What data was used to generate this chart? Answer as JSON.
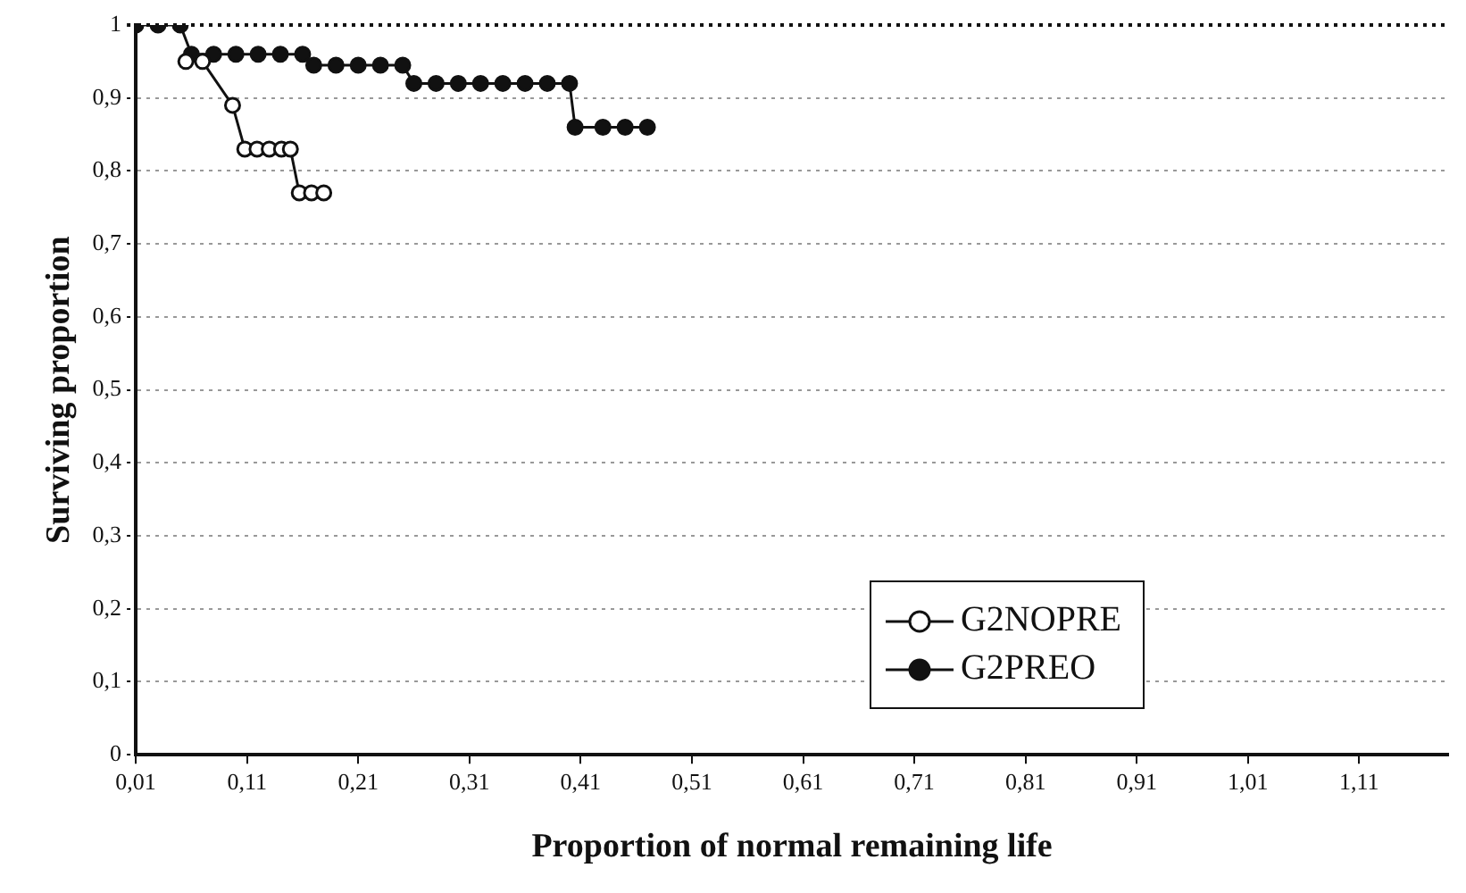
{
  "chart_data": {
    "type": "line",
    "xlabel": "Proportion of normal remaining life",
    "ylabel": "Surviving proportion",
    "xlim": [
      0.01,
      1.19
    ],
    "ylim": [
      0,
      1
    ],
    "xticks": [
      {
        "value": 0.01,
        "label": "0,01"
      },
      {
        "value": 0.11,
        "label": "0,11"
      },
      {
        "value": 0.21,
        "label": "0,21"
      },
      {
        "value": 0.31,
        "label": "0,31"
      },
      {
        "value": 0.41,
        "label": "0,41"
      },
      {
        "value": 0.51,
        "label": "0,51"
      },
      {
        "value": 0.61,
        "label": "0,61"
      },
      {
        "value": 0.71,
        "label": "0,71"
      },
      {
        "value": 0.81,
        "label": "0,81"
      },
      {
        "value": 0.91,
        "label": "0,91"
      },
      {
        "value": 1.01,
        "label": "1,01"
      },
      {
        "value": 1.11,
        "label": "1,11"
      }
    ],
    "yticks": [
      0,
      {
        "value": 0.1,
        "label": "0,1"
      },
      {
        "value": 0.2,
        "label": "0,2"
      },
      {
        "value": 0.3,
        "label": "0,3"
      },
      {
        "value": 0.4,
        "label": "0,4"
      },
      {
        "value": 0.5,
        "label": "0,5"
      },
      {
        "value": 0.6,
        "label": "0,6"
      },
      {
        "value": 0.7,
        "label": "0,7"
      },
      {
        "value": 0.8,
        "label": "0,8"
      },
      {
        "value": 0.9,
        "label": "0,9"
      },
      1
    ],
    "grid": "y",
    "legend": "right",
    "marker": "circle",
    "line_style": "solid",
    "series": [
      {
        "name": "G2NOPRE",
        "color": "#ffffff",
        "x": [
          0.055,
          0.07,
          0.097,
          0.108,
          0.119,
          0.13,
          0.141,
          0.149,
          0.157,
          0.168,
          0.179
        ],
        "values": [
          0.95,
          0.95,
          0.89,
          0.83,
          0.83,
          0.83,
          0.83,
          0.83,
          0.77,
          0.77,
          0.77
        ]
      },
      {
        "name": "G2PREO",
        "color": "#111111",
        "x": [
          0.01,
          0.03,
          0.05,
          0.06,
          0.08,
          0.1,
          0.12,
          0.14,
          0.16,
          0.17,
          0.19,
          0.21,
          0.23,
          0.25,
          0.26,
          0.28,
          0.3,
          0.32,
          0.34,
          0.36,
          0.38,
          0.4,
          0.405,
          0.43,
          0.45,
          0.47
        ],
        "values": [
          1,
          1,
          1,
          0.96,
          0.96,
          0.96,
          0.96,
          0.96,
          0.96,
          0.945,
          0.945,
          0.945,
          0.945,
          0.945,
          0.92,
          0.92,
          0.92,
          0.92,
          0.92,
          0.92,
          0.92,
          0.92,
          0.86,
          0.86,
          0.86,
          0.86
        ]
      }
    ]
  }
}
